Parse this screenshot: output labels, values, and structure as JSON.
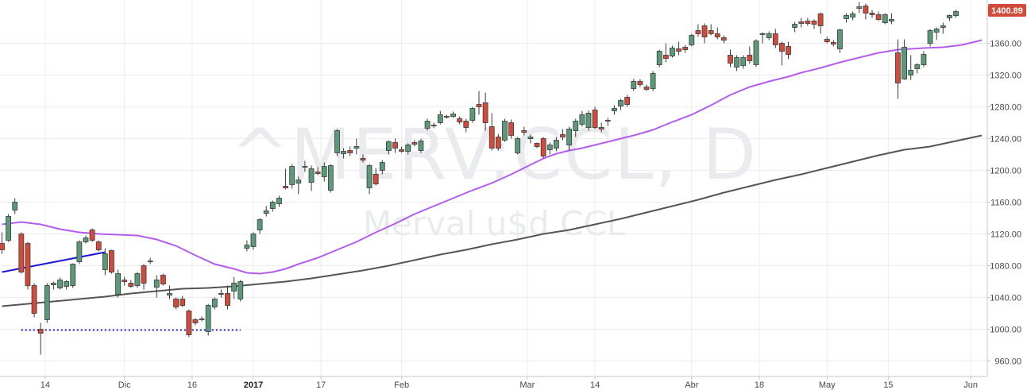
{
  "watermark": {
    "symbol": "^MERV:CCL, D",
    "name": "Merval u$d CCL"
  },
  "last_price": "1400.89",
  "colors": {
    "up": "#5b9a78",
    "down": "#d24b3a",
    "ma_fast": "#b45cf0",
    "ma_slow": "#555555",
    "trendline": "#1a1ad8",
    "support": "#1a1ad8",
    "price_tag": "#d24b3a"
  },
  "chart_data": {
    "type": "candlestick",
    "y_axis": {
      "min": 940,
      "max": 1420,
      "ticks": [
        "960.00",
        "1000.00",
        "1040.00",
        "1080.00",
        "1120.00",
        "1160.00",
        "1200.00",
        "1240.00",
        "1280.00",
        "1320.00",
        "1360.00"
      ]
    },
    "x_labels": [
      "14",
      "Dic",
      "16",
      "2017",
      "17",
      "Feb",
      "Mar",
      "14",
      "Abr",
      "18",
      "May",
      "15",
      "Jun"
    ],
    "candles": [
      [
        1108,
        1122,
        1095,
        1100
      ],
      [
        1112,
        1145,
        1110,
        1142
      ],
      [
        1150,
        1165,
        1145,
        1160
      ],
      [
        1120,
        1122,
        1070,
        1072
      ],
      [
        1108,
        1110,
        1050,
        1055
      ],
      [
        1055,
        1058,
        1015,
        1020
      ],
      [
        1000,
        1008,
        968,
        995
      ],
      [
        1012,
        1058,
        1008,
        1055
      ],
      [
        1056,
        1060,
        1050,
        1058
      ],
      [
        1052,
        1065,
        1050,
        1062
      ],
      [
        1054,
        1062,
        1050,
        1060
      ],
      [
        1055,
        1083,
        1052,
        1082
      ],
      [
        1085,
        1112,
        1082,
        1110
      ],
      [
        1110,
        1118,
        1108,
        1115
      ],
      [
        1125,
        1127,
        1110,
        1112
      ],
      [
        1110,
        1112,
        1098,
        1100
      ],
      [
        1075,
        1102,
        1068,
        1095
      ],
      [
        1099,
        1100,
        1070,
        1072
      ],
      [
        1044,
        1075,
        1040,
        1070
      ],
      [
        1062,
        1066,
        1055,
        1060
      ],
      [
        1058,
        1062,
        1052,
        1054
      ],
      [
        1055,
        1072,
        1052,
        1070
      ],
      [
        1080,
        1082,
        1050,
        1058
      ],
      [
        1085,
        1090,
        1082,
        1086
      ],
      [
        1053,
        1068,
        1040,
        1062
      ],
      [
        1068,
        1070,
        1055,
        1057
      ],
      [
        1043,
        1055,
        1038,
        1045
      ],
      [
        1038,
        1040,
        1025,
        1028
      ],
      [
        1038,
        1042,
        1028,
        1030
      ],
      [
        1023,
        1025,
        990,
        993
      ],
      [
        1012,
        1014,
        1005,
        1008
      ],
      [
        1013,
        1016,
        1010,
        1012
      ],
      [
        997,
        1032,
        992,
        1030
      ],
      [
        1028,
        1040,
        1025,
        1038
      ],
      [
        1045,
        1050,
        1040,
        1044
      ],
      [
        1045,
        1055,
        1025,
        1030
      ],
      [
        1048,
        1066,
        1038,
        1058
      ],
      [
        1038,
        1062,
        1035,
        1060
      ],
      [
        1102,
        1112,
        1098,
        1106
      ],
      [
        1104,
        1122,
        1100,
        1120
      ],
      [
        1125,
        1140,
        1120,
        1138
      ],
      [
        1146,
        1155,
        1142,
        1149
      ],
      [
        1152,
        1162,
        1148,
        1160
      ],
      [
        1158,
        1168,
        1154,
        1165
      ],
      [
        1180,
        1202,
        1176,
        1178
      ],
      [
        1182,
        1208,
        1177,
        1205
      ],
      [
        1184,
        1192,
        1170,
        1188
      ],
      [
        1204,
        1212,
        1198,
        1205
      ],
      [
        1185,
        1206,
        1174,
        1202
      ],
      [
        1198,
        1204,
        1194,
        1196
      ],
      [
        1192,
        1210,
        1186,
        1205
      ],
      [
        1175,
        1208,
        1172,
        1206
      ],
      [
        1222,
        1252,
        1218,
        1250
      ],
      [
        1221,
        1228,
        1215,
        1224
      ],
      [
        1225,
        1230,
        1218,
        1222
      ],
      [
        1228,
        1240,
        1220,
        1230
      ],
      [
        1215,
        1220,
        1210,
        1213
      ],
      [
        1178,
        1208,
        1170,
        1206
      ],
      [
        1195,
        1203,
        1181,
        1183
      ],
      [
        1200,
        1213,
        1195,
        1210
      ],
      [
        1225,
        1238,
        1220,
        1236
      ],
      [
        1235,
        1240,
        1222,
        1228
      ],
      [
        1226,
        1230,
        1222,
        1224
      ],
      [
        1224,
        1234,
        1220,
        1232
      ],
      [
        1235,
        1238,
        1230,
        1233
      ],
      [
        1225,
        1240,
        1222,
        1237
      ],
      [
        1253,
        1265,
        1250,
        1262
      ],
      [
        1257,
        1260,
        1253,
        1256
      ],
      [
        1260,
        1275,
        1258,
        1270
      ],
      [
        1268,
        1270,
        1265,
        1267
      ],
      [
        1268,
        1274,
        1266,
        1271
      ],
      [
        1265,
        1268,
        1258,
        1261
      ],
      [
        1262,
        1265,
        1248,
        1254
      ],
      [
        1263,
        1280,
        1260,
        1278
      ],
      [
        1283,
        1300,
        1270,
        1280
      ],
      [
        1285,
        1298,
        1250,
        1260
      ],
      [
        1255,
        1272,
        1225,
        1228
      ],
      [
        1242,
        1246,
        1225,
        1228
      ],
      [
        1238,
        1265,
        1236,
        1262
      ],
      [
        1260,
        1264,
        1240,
        1244
      ],
      [
        1222,
        1242,
        1220,
        1240
      ],
      [
        1250,
        1255,
        1244,
        1248
      ],
      [
        1240,
        1245,
        1234,
        1242
      ],
      [
        1234,
        1235,
        1228,
        1230
      ],
      [
        1240,
        1242,
        1215,
        1218
      ],
      [
        1226,
        1235,
        1220,
        1232
      ],
      [
        1228,
        1242,
        1224,
        1238
      ],
      [
        1245,
        1252,
        1238,
        1242
      ],
      [
        1232,
        1255,
        1225,
        1252
      ],
      [
        1250,
        1265,
        1242,
        1262
      ],
      [
        1258,
        1275,
        1255,
        1270
      ],
      [
        1254,
        1275,
        1250,
        1272
      ],
      [
        1276,
        1280,
        1252,
        1254
      ],
      [
        1254,
        1260,
        1248,
        1252
      ],
      [
        1262,
        1266,
        1256,
        1263
      ],
      [
        1275,
        1282,
        1270,
        1278
      ],
      [
        1281,
        1290,
        1276,
        1288
      ],
      [
        1292,
        1295,
        1280,
        1283
      ],
      [
        1303,
        1315,
        1300,
        1312
      ],
      [
        1312,
        1315,
        1305,
        1308
      ],
      [
        1305,
        1308,
        1300,
        1302
      ],
      [
        1303,
        1325,
        1300,
        1322
      ],
      [
        1333,
        1352,
        1330,
        1350
      ],
      [
        1345,
        1360,
        1336,
        1341
      ],
      [
        1344,
        1357,
        1342,
        1354
      ],
      [
        1353,
        1362,
        1345,
        1350
      ],
      [
        1355,
        1358,
        1348,
        1352
      ],
      [
        1358,
        1372,
        1356,
        1370
      ],
      [
        1376,
        1384,
        1368,
        1372
      ],
      [
        1382,
        1385,
        1360,
        1368
      ],
      [
        1376,
        1384,
        1370,
        1372
      ],
      [
        1372,
        1380,
        1365,
        1368
      ],
      [
        1367,
        1370,
        1360,
        1364
      ],
      [
        1345,
        1352,
        1330,
        1335
      ],
      [
        1330,
        1345,
        1325,
        1342
      ],
      [
        1332,
        1345,
        1328,
        1342
      ],
      [
        1345,
        1356,
        1334,
        1338
      ],
      [
        1333,
        1365,
        1330,
        1363
      ],
      [
        1372,
        1374,
        1360,
        1372
      ],
      [
        1367,
        1375,
        1364,
        1372
      ],
      [
        1372,
        1378,
        1354,
        1358
      ],
      [
        1360,
        1362,
        1332,
        1350
      ],
      [
        1356,
        1362,
        1340,
        1346
      ],
      [
        1380,
        1387,
        1374,
        1384
      ],
      [
        1387,
        1392,
        1380,
        1385
      ],
      [
        1388,
        1392,
        1382,
        1385
      ],
      [
        1388,
        1390,
        1378,
        1384
      ],
      [
        1397,
        1399,
        1372,
        1382
      ],
      [
        1365,
        1368,
        1360,
        1362
      ],
      [
        1361,
        1364,
        1356,
        1359
      ],
      [
        1353,
        1378,
        1348,
        1377
      ],
      [
        1391,
        1398,
        1386,
        1395
      ],
      [
        1393,
        1400,
        1389,
        1397
      ],
      [
        1404,
        1412,
        1398,
        1406
      ],
      [
        1407,
        1410,
        1390,
        1398
      ],
      [
        1398,
        1402,
        1392,
        1396
      ],
      [
        1396,
        1400,
        1388,
        1390
      ],
      [
        1386,
        1398,
        1384,
        1396
      ],
      [
        1388,
        1398,
        1384,
        1390
      ],
      [
        1348,
        1365,
        1290,
        1310
      ],
      [
        1315,
        1365,
        1314,
        1355
      ],
      [
        1320,
        1345,
        1314,
        1326
      ],
      [
        1328,
        1335,
        1322,
        1333
      ],
      [
        1333,
        1350,
        1330,
        1346
      ],
      [
        1360,
        1378,
        1356,
        1376
      ],
      [
        1374,
        1380,
        1364,
        1378
      ],
      [
        1380,
        1386,
        1372,
        1382
      ],
      [
        1392,
        1396,
        1388,
        1395
      ],
      [
        1395,
        1402,
        1392,
        1400
      ]
    ],
    "ma_fast": [
      [
        0,
        1132
      ],
      [
        3,
        1135
      ],
      [
        6,
        1132
      ],
      [
        9,
        1126
      ],
      [
        12,
        1122
      ],
      [
        15,
        1120
      ],
      [
        18,
        1119
      ],
      [
        21,
        1118
      ],
      [
        24,
        1113
      ],
      [
        27,
        1105
      ],
      [
        30,
        1093
      ],
      [
        33,
        1082
      ],
      [
        36,
        1076
      ],
      [
        38,
        1071
      ],
      [
        40,
        1070
      ],
      [
        42,
        1072
      ],
      [
        44,
        1076
      ],
      [
        46,
        1082
      ],
      [
        49,
        1090
      ],
      [
        52,
        1100
      ],
      [
        55,
        1110
      ],
      [
        58,
        1122
      ],
      [
        61,
        1133
      ],
      [
        64,
        1145
      ],
      [
        67,
        1155
      ],
      [
        70,
        1165
      ],
      [
        73,
        1175
      ],
      [
        76,
        1184
      ],
      [
        79,
        1195
      ],
      [
        82,
        1207
      ],
      [
        84,
        1215
      ],
      [
        86,
        1221
      ],
      [
        88,
        1225
      ],
      [
        90,
        1228
      ],
      [
        92,
        1232
      ],
      [
        95,
        1238
      ],
      [
        98,
        1244
      ],
      [
        101,
        1251
      ],
      [
        104,
        1261
      ],
      [
        107,
        1270
      ],
      [
        110,
        1282
      ],
      [
        113,
        1295
      ],
      [
        116,
        1305
      ],
      [
        119,
        1312
      ],
      [
        122,
        1318
      ],
      [
        124,
        1323
      ],
      [
        127,
        1329
      ],
      [
        130,
        1336
      ],
      [
        133,
        1342
      ],
      [
        136,
        1348
      ],
      [
        139,
        1352
      ],
      [
        141,
        1353
      ],
      [
        143,
        1354
      ],
      [
        146,
        1355
      ],
      [
        149,
        1358
      ],
      [
        152,
        1364
      ]
    ],
    "ma_slow": [
      [
        0,
        1029
      ],
      [
        4,
        1032
      ],
      [
        8,
        1035
      ],
      [
        12,
        1038
      ],
      [
        16,
        1041
      ],
      [
        20,
        1045
      ],
      [
        24,
        1048
      ],
      [
        28,
        1051
      ],
      [
        32,
        1052
      ],
      [
        36,
        1054
      ],
      [
        40,
        1057
      ],
      [
        44,
        1060
      ],
      [
        48,
        1064
      ],
      [
        52,
        1069
      ],
      [
        56,
        1074
      ],
      [
        60,
        1080
      ],
      [
        64,
        1087
      ],
      [
        68,
        1094
      ],
      [
        72,
        1100
      ],
      [
        76,
        1107
      ],
      [
        80,
        1113
      ],
      [
        84,
        1120
      ],
      [
        88,
        1125
      ],
      [
        92,
        1132
      ],
      [
        96,
        1139
      ],
      [
        100,
        1147
      ],
      [
        104,
        1155
      ],
      [
        108,
        1163
      ],
      [
        112,
        1172
      ],
      [
        116,
        1180
      ],
      [
        120,
        1188
      ],
      [
        124,
        1195
      ],
      [
        128,
        1203
      ],
      [
        132,
        1211
      ],
      [
        136,
        1219
      ],
      [
        140,
        1226
      ],
      [
        144,
        1230
      ],
      [
        148,
        1237
      ],
      [
        152,
        1244
      ]
    ],
    "trendline": [
      [
        0,
        1072
      ],
      [
        16,
        1097
      ]
    ],
    "support": [
      [
        3,
        999
      ],
      [
        37,
        999
      ]
    ]
  }
}
